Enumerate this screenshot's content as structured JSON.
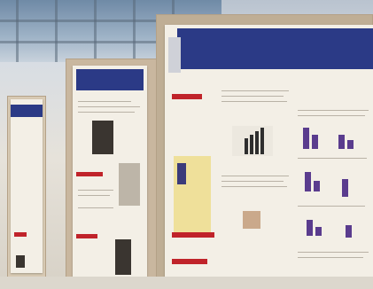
{
  "scene": {
    "description_tag": "photo-of-poster-session",
    "colors": {
      "poster_header": "#2b3a86",
      "poster_accent_red": "#c0232a",
      "bar_purple": "#5a3c8e",
      "board_beige": "#c9b79f"
    }
  }
}
